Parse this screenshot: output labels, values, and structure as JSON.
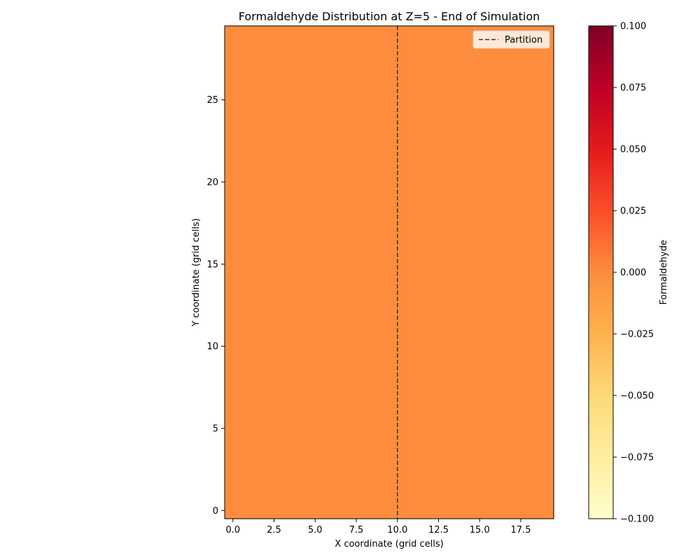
{
  "chart_data": {
    "type": "heatmap",
    "title": "Formaldehyde Distribution at Z=5 - End of Simulation",
    "xlabel": "X coordinate (grid cells)",
    "ylabel": "Y coordinate (grid cells)",
    "xlim": [
      -0.5,
      19.5
    ],
    "ylim": [
      -0.5,
      29.5
    ],
    "x_ticks": [
      0,
      2.5,
      5,
      7.5,
      10,
      12.5,
      15,
      17.5
    ],
    "x_tick_labels": [
      "0.0",
      "2.5",
      "5.0",
      "7.5",
      "10.0",
      "12.5",
      "15.0",
      "17.5"
    ],
    "y_ticks": [
      0,
      5,
      10,
      15,
      20,
      25
    ],
    "y_tick_labels": [
      "0",
      "5",
      "10",
      "15",
      "20",
      "25"
    ],
    "grid": false,
    "value": 0.0,
    "cell_color": "#fd8d3c",
    "partition": {
      "label": "Partition",
      "x": 10,
      "color": "#333333",
      "style": "dashed"
    },
    "legend": {
      "placement": "top-right",
      "entries": [
        "Partition"
      ]
    },
    "colorbar": {
      "label": "Formaldehyde",
      "colormap": "YlOrRd",
      "range": [
        -0.1,
        0.1
      ],
      "ticks": [
        -0.1,
        -0.075,
        -0.05,
        -0.025,
        0.0,
        0.025,
        0.05,
        0.075,
        0.1
      ],
      "tick_labels": [
        "−0.100",
        "−0.075",
        "−0.050",
        "−0.025",
        "0.000",
        "0.025",
        "0.050",
        "0.075",
        "0.100"
      ],
      "stops": [
        "#ffffcc",
        "#ffeda0",
        "#fed976",
        "#feb24c",
        "#fd8d3c",
        "#fc4e2a",
        "#e31a1c",
        "#bd0026",
        "#800026"
      ]
    }
  }
}
